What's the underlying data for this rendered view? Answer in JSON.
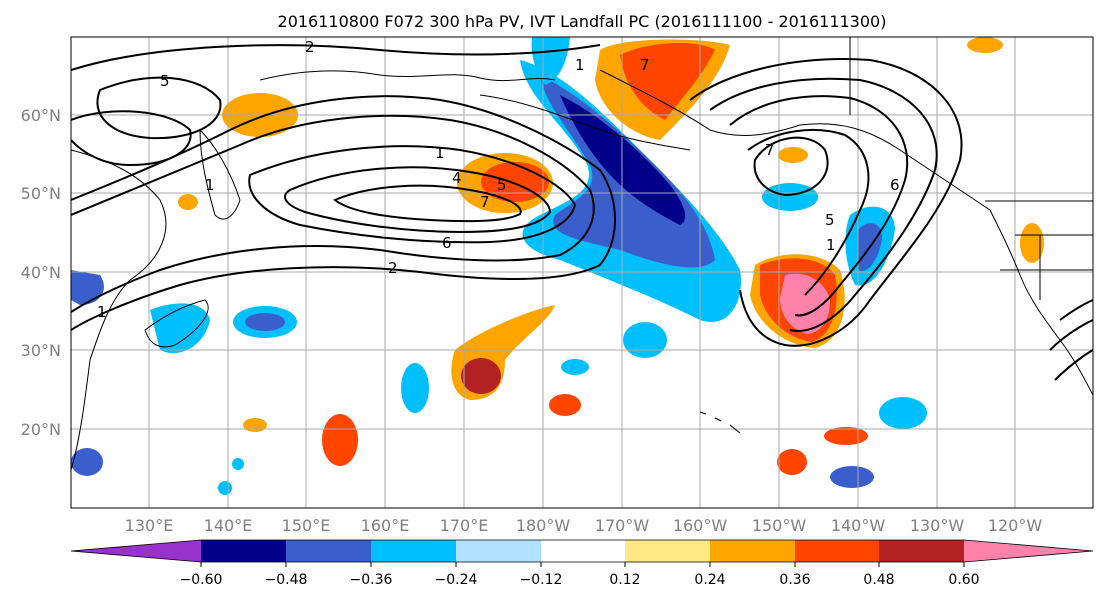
{
  "title": "2016110800 F072 300 hPa PV, IVT Landfall PC (2016111100 - 2016111300)",
  "map": {
    "lat_labels": [
      "60°N",
      "50°N",
      "40°N",
      "30°N",
      "20°N"
    ],
    "lon_labels": [
      "130°E",
      "140°E",
      "150°E",
      "160°E",
      "170°E",
      "180°W",
      "170°W",
      "160°W",
      "150°W",
      "140°W",
      "130°W",
      "120°W"
    ],
    "contour_labels": [
      "2",
      "5",
      "1",
      "1",
      "4",
      "5",
      "7",
      "6",
      "2",
      "1",
      "1",
      "7",
      "7",
      "6",
      "5",
      "1"
    ]
  },
  "colorbar": {
    "colors": [
      "#9932cc",
      "#00008b",
      "#3a5fcd",
      "#00bfff",
      "#b0e2ff",
      "#ffffff",
      "#ffe985",
      "#ffa500",
      "#ff4500",
      "#b22222",
      "#ff82ab"
    ],
    "tick_labels": [
      "−0.60",
      "−0.48",
      "−0.36",
      "−0.24",
      "−0.12",
      "0.12",
      "0.24",
      "0.36",
      "0.48",
      "0.60"
    ]
  }
}
